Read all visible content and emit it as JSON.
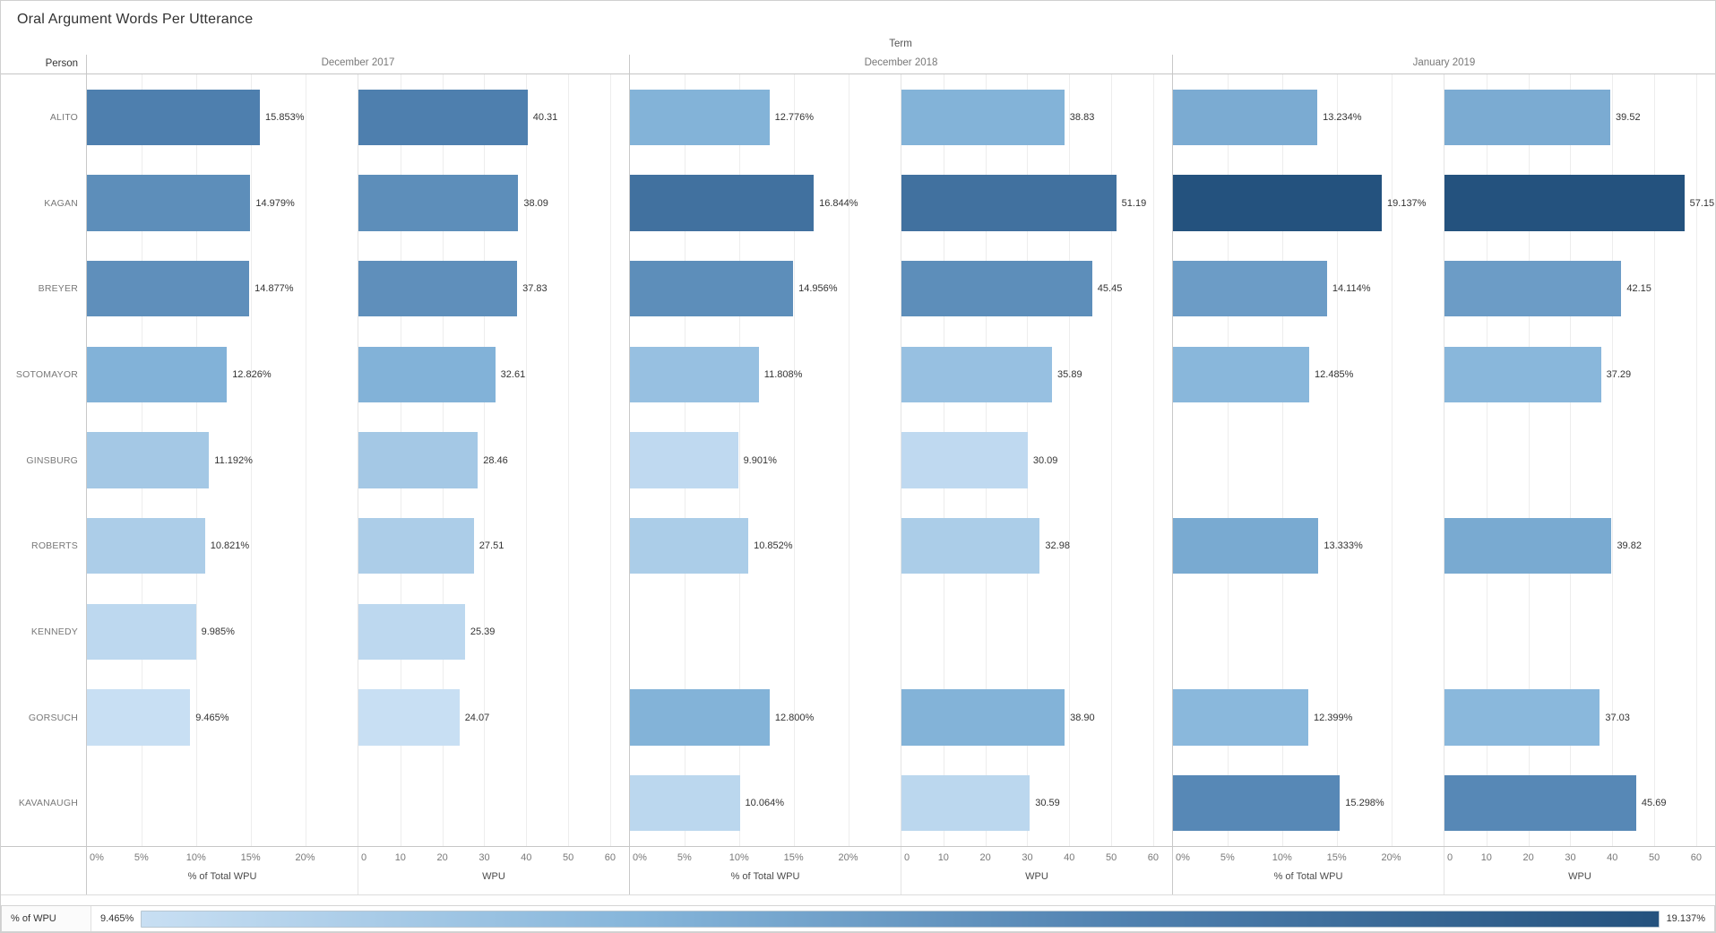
{
  "title": "Oral Argument Words Per Utterance",
  "header": {
    "person_label": "Person",
    "term_label": "Term"
  },
  "legend": {
    "label": "% of WPU",
    "min_label": "9.465%",
    "max_label": "19.137%",
    "min": 9.465,
    "max": 19.137
  },
  "colors": {
    "scale_stops": [
      [
        0,
        "#c8dff3"
      ],
      [
        0.33,
        "#85b5da"
      ],
      [
        0.66,
        "#4e7fae"
      ],
      [
        1,
        "#24527e"
      ]
    ],
    "gridline": "#ededed",
    "term_border": "#c9c9c9",
    "inner_border": "#e4e4e4"
  },
  "chart_data": {
    "type": "bar",
    "orientation": "horizontal",
    "color_encoding": "% of WPU (sequential blue, 9.465% light to 19.137% dark)",
    "terms": [
      "December 2017",
      "December 2018",
      "January 2019"
    ],
    "measures": [
      "% of Total WPU",
      "WPU"
    ],
    "pct_axis": {
      "tick_labels": [
        "0%",
        "5%",
        "10%",
        "15%",
        "20%"
      ],
      "tick_values": [
        0,
        5,
        10,
        15,
        20
      ],
      "max": 24.8,
      "title": "% of Total WPU"
    },
    "wpu_axis": {
      "tick_labels": [
        "0",
        "10",
        "20",
        "30",
        "40",
        "50",
        "60"
      ],
      "tick_values": [
        0,
        10,
        20,
        30,
        40,
        50,
        60
      ],
      "max": 64.5,
      "title": "WPU"
    },
    "categories": [
      "ALITO",
      "KAGAN",
      "BREYER",
      "SOTOMAYOR",
      "GINSBURG",
      "ROBERTS",
      "KENNEDY",
      "GORSUCH",
      "KAVANAUGH"
    ],
    "rows": [
      {
        "name": "ALITO",
        "terms": [
          {
            "pct": 15.853,
            "pct_label": "15.853%",
            "wpu": 40.31,
            "wpu_label": "40.31"
          },
          {
            "pct": 12.776,
            "pct_label": "12.776%",
            "wpu": 38.83,
            "wpu_label": "38.83"
          },
          {
            "pct": 13.234,
            "pct_label": "13.234%",
            "wpu": 39.52,
            "wpu_label": "39.52"
          }
        ]
      },
      {
        "name": "KAGAN",
        "terms": [
          {
            "pct": 14.979,
            "pct_label": "14.979%",
            "wpu": 38.09,
            "wpu_label": "38.09"
          },
          {
            "pct": 16.844,
            "pct_label": "16.844%",
            "wpu": 51.19,
            "wpu_label": "51.19"
          },
          {
            "pct": 19.137,
            "pct_label": "19.137%",
            "wpu": 57.15,
            "wpu_label": "57.15"
          }
        ]
      },
      {
        "name": "BREYER",
        "terms": [
          {
            "pct": 14.877,
            "pct_label": "14.877%",
            "wpu": 37.83,
            "wpu_label": "37.83"
          },
          {
            "pct": 14.956,
            "pct_label": "14.956%",
            "wpu": 45.45,
            "wpu_label": "45.45"
          },
          {
            "pct": 14.114,
            "pct_label": "14.114%",
            "wpu": 42.15,
            "wpu_label": "42.15"
          }
        ]
      },
      {
        "name": "SOTOMAYOR",
        "terms": [
          {
            "pct": 12.826,
            "pct_label": "12.826%",
            "wpu": 32.61,
            "wpu_label": "32.61"
          },
          {
            "pct": 11.808,
            "pct_label": "11.808%",
            "wpu": 35.89,
            "wpu_label": "35.89"
          },
          {
            "pct": 12.485,
            "pct_label": "12.485%",
            "wpu": 37.29,
            "wpu_label": "37.29"
          }
        ]
      },
      {
        "name": "GINSBURG",
        "terms": [
          {
            "pct": 11.192,
            "pct_label": "11.192%",
            "wpu": 28.46,
            "wpu_label": "28.46"
          },
          {
            "pct": 9.901,
            "pct_label": "9.901%",
            "wpu": 30.09,
            "wpu_label": "30.09"
          },
          null
        ]
      },
      {
        "name": "ROBERTS",
        "terms": [
          {
            "pct": 10.821,
            "pct_label": "10.821%",
            "wpu": 27.51,
            "wpu_label": "27.51"
          },
          {
            "pct": 10.852,
            "pct_label": "10.852%",
            "wpu": 32.98,
            "wpu_label": "32.98"
          },
          {
            "pct": 13.333,
            "pct_label": "13.333%",
            "wpu": 39.82,
            "wpu_label": "39.82"
          }
        ]
      },
      {
        "name": "KENNEDY",
        "terms": [
          {
            "pct": 9.985,
            "pct_label": "9.985%",
            "wpu": 25.39,
            "wpu_label": "25.39"
          },
          null,
          null
        ]
      },
      {
        "name": "GORSUCH",
        "terms": [
          {
            "pct": 9.465,
            "pct_label": "9.465%",
            "wpu": 24.07,
            "wpu_label": "24.07"
          },
          {
            "pct": 12.8,
            "pct_label": "12.800%",
            "wpu": 38.9,
            "wpu_label": "38.90"
          },
          {
            "pct": 12.399,
            "pct_label": "12.399%",
            "wpu": 37.03,
            "wpu_label": "37.03"
          }
        ]
      },
      {
        "name": "KAVANAUGH",
        "terms": [
          null,
          {
            "pct": 10.064,
            "pct_label": "10.064%",
            "wpu": 30.59,
            "wpu_label": "30.59"
          },
          {
            "pct": 15.298,
            "pct_label": "15.298%",
            "wpu": 45.69,
            "wpu_label": "45.69"
          }
        ]
      }
    ]
  }
}
